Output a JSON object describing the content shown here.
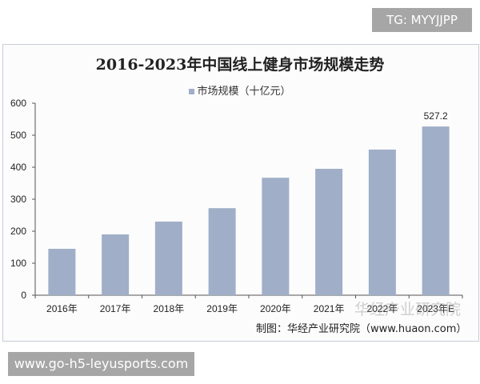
{
  "watermark_top": "TG: MYYJJPP",
  "watermark_bottom": "www.go-h5-leyusports.com",
  "chart_data": {
    "type": "bar",
    "title": "2016-2023年中国线上健身市场规模走势",
    "categories": [
      "2016年",
      "2017年",
      "2018年",
      "2019年",
      "2020年",
      "2021年",
      "2022年",
      "2023年E"
    ],
    "series": [
      {
        "name": "市场规模（十亿元）",
        "values": [
          145,
          190,
          230,
          272,
          367,
          395,
          455,
          527.2
        ],
        "color": "#a0aec8"
      }
    ],
    "data_labels": {
      "2023年E": "527.2"
    },
    "ylim": [
      0,
      600
    ],
    "yticks": [
      "0",
      "100",
      "200",
      "300",
      "400",
      "500",
      "600"
    ],
    "grid": false,
    "legend": "top",
    "source": "制图：华经产业研究院（www.huaon.com）",
    "logo_text": "华经产业研究院"
  }
}
